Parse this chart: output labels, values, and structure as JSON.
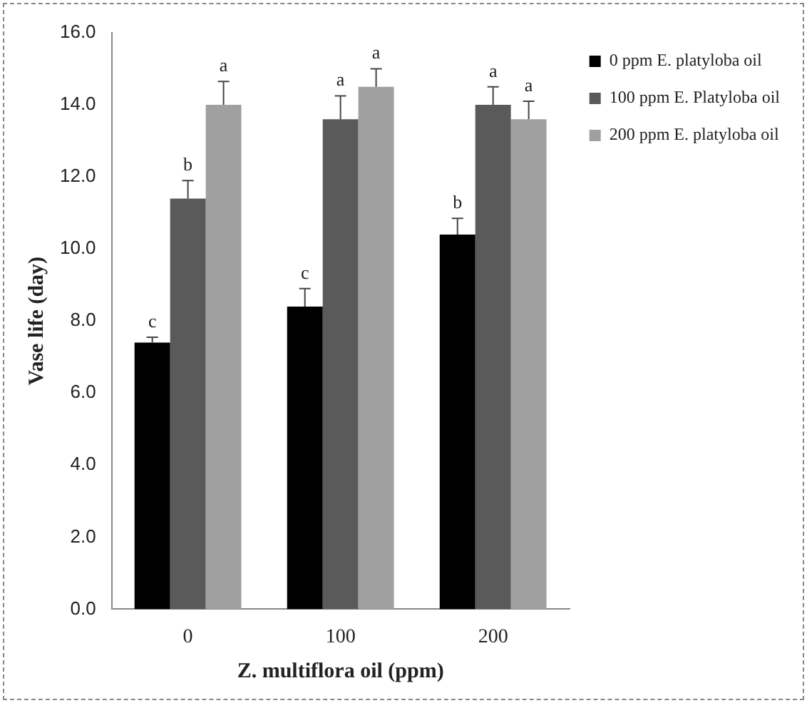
{
  "chart_data": {
    "type": "bar",
    "ylabel": "Vase life (day)",
    "xlabel": "Z. multiflora oil (ppm)",
    "categories": [
      "0",
      "100",
      "200"
    ],
    "series": [
      {
        "name": "0 ppm E. platyloba oil",
        "color": "#000000",
        "values": [
          7.4,
          8.4,
          10.4
        ],
        "errors": [
          [
            7.4,
            7.55
          ],
          [
            8.4,
            8.9
          ],
          [
            10.4,
            10.85
          ]
        ],
        "value_labels": [
          "c",
          "c",
          "b"
        ]
      },
      {
        "name": "100 ppm E. Platyloba oil",
        "color": "#5a5a5a",
        "values": [
          11.4,
          13.6,
          14.0
        ],
        "errors": [
          [
            11.4,
            11.9
          ],
          [
            13.6,
            14.25
          ],
          [
            14.0,
            14.5
          ]
        ],
        "value_labels": [
          "b",
          "a",
          "a"
        ]
      },
      {
        "name": "200 ppm E. platyloba oil",
        "color": "#a0a0a0",
        "values": [
          14.0,
          14.5,
          13.6
        ],
        "errors": [
          [
            14.0,
            14.65
          ],
          [
            14.5,
            15.0
          ],
          [
            13.6,
            14.1
          ]
        ],
        "value_labels": [
          "a",
          "a",
          "a"
        ]
      }
    ],
    "ylim": [
      0,
      16
    ],
    "yticks": [
      {
        "value": 0,
        "label": "0.0"
      },
      {
        "value": 2,
        "label": "2.0"
      },
      {
        "value": 4,
        "label": "4.0"
      },
      {
        "value": 6,
        "label": "6.0"
      },
      {
        "value": 8,
        "label": "8.0"
      },
      {
        "value": 10,
        "label": "10.0"
      },
      {
        "value": 12,
        "label": "12.0"
      },
      {
        "value": 14,
        "label": "14.0"
      },
      {
        "value": 16,
        "label": "16.0"
      }
    ],
    "legend": "top right"
  }
}
